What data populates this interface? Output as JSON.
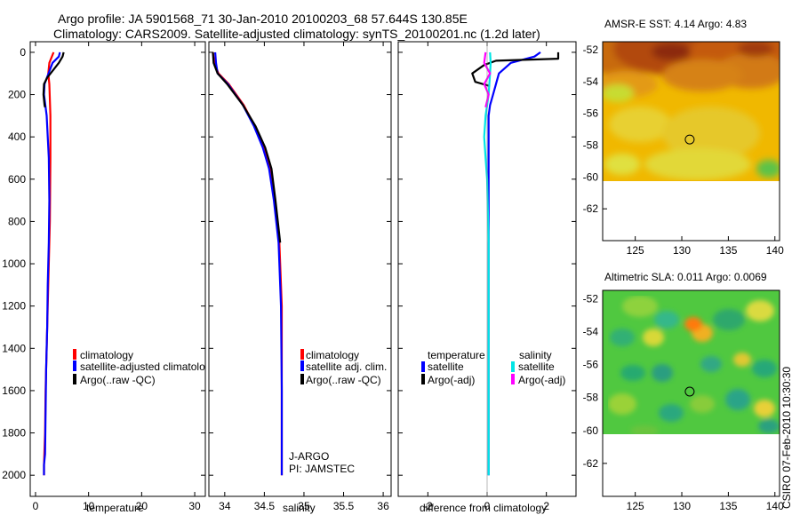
{
  "header": {
    "line1": "Argo profile: JA 5901568_71 30-Jan-2010 20100203_68 57.644S 130.85E",
    "line2": "Climatology: CARS2009. Satellite-adjusted climatology: synTS_20100201.nc (1.2d later)"
  },
  "timestamp": "CSIRO 07-Feb-2010 10:30:30",
  "colors": {
    "climatology": "#ff0000",
    "satellite": "#0000ff",
    "argo": "#000000",
    "sal_satellite": "#00e5e5",
    "sal_argo": "#ff00ff"
  },
  "chart_data": [
    {
      "type": "line",
      "id": "temperature",
      "xlabel": "temperature",
      "ylabel": "",
      "xlim": [
        -1,
        32
      ],
      "ylim": [
        2100,
        -50
      ],
      "xticks": [
        0,
        10,
        20,
        30
      ],
      "yticks": [
        0,
        200,
        400,
        600,
        800,
        1000,
        1200,
        1400,
        1600,
        1800,
        2000
      ],
      "legend": [
        "climatology",
        "satellite-adjusted climatolo",
        "Argo(..raw -QC)"
      ],
      "series": [
        {
          "name": "climatology",
          "color": "#ff0000",
          "x": [
            3.4,
            2.6,
            2.4,
            2.6,
            2.8,
            2.8,
            2.7,
            2.5,
            2.3,
            2.1,
            1.9,
            1.8,
            1.6,
            1.6
          ],
          "y": [
            0,
            50,
            100,
            150,
            300,
            500,
            800,
            1000,
            1200,
            1400,
            1600,
            1800,
            1950,
            2000
          ]
        },
        {
          "name": "satellite-adjusted climatology",
          "color": "#0000ff",
          "x": [
            4.6,
            4.4,
            3.2,
            1.7,
            1.6,
            2.1,
            2.5,
            2.6,
            2.5,
            2.3,
            2.2,
            2.0,
            1.9,
            1.8,
            1.6,
            1.6
          ],
          "y": [
            0,
            20,
            50,
            150,
            200,
            300,
            500,
            700,
            900,
            1100,
            1300,
            1500,
            1700,
            1900,
            1950,
            2000
          ]
        },
        {
          "name": "Argo (raw -QC)",
          "color": "#000000",
          "x": [
            5.3,
            5.1,
            4.4,
            2.2,
            1.6,
            1.5,
            1.7,
            1.8
          ],
          "y": [
            0,
            20,
            50,
            120,
            150,
            200,
            250,
            260
          ]
        }
      ]
    },
    {
      "type": "line",
      "id": "salinity",
      "xlabel": "salinity",
      "ylabel": "",
      "xlim": [
        33.8,
        36.1
      ],
      "ylim": [
        2100,
        -50
      ],
      "xticks": [
        34,
        34.5,
        35,
        35.5,
        36
      ],
      "yticks": [
        0,
        200,
        400,
        600,
        800,
        1000,
        1200,
        1400,
        1600,
        1800,
        2000
      ],
      "legend": [
        "climatology",
        "satellite adj. clim.",
        "Argo(..raw -QC)"
      ],
      "annotations": [
        "J-ARGO",
        "PI: JAMSTEC"
      ],
      "series": [
        {
          "name": "climatology",
          "color": "#ff0000",
          "x": [
            33.85,
            33.87,
            33.92,
            34.05,
            34.24,
            34.38,
            34.49,
            34.57,
            34.63,
            34.69,
            34.72,
            34.72,
            34.72
          ],
          "y": [
            0,
            50,
            100,
            150,
            250,
            350,
            450,
            550,
            700,
            900,
            1200,
            1600,
            2000
          ]
        },
        {
          "name": "satellite adj. clim.",
          "color": "#0000ff",
          "x": [
            33.88,
            33.89,
            33.91,
            34.04,
            34.23,
            34.37,
            34.48,
            34.56,
            34.62,
            34.68,
            34.71,
            34.72,
            34.72
          ],
          "y": [
            0,
            50,
            100,
            150,
            250,
            350,
            450,
            550,
            700,
            900,
            1200,
            1600,
            2000
          ]
        },
        {
          "name": "Argo (raw -QC)",
          "color": "#000000",
          "x": [
            33.85,
            33.86,
            33.91,
            34.03,
            34.23,
            34.39,
            34.51,
            34.59,
            34.64,
            34.7
          ],
          "y": [
            0,
            50,
            100,
            150,
            250,
            350,
            450,
            550,
            700,
            900
          ]
        }
      ]
    },
    {
      "type": "line",
      "id": "difference",
      "xlabel": "difference from climatology",
      "ylabel": "",
      "xlim": [
        -3,
        3
      ],
      "ylim": [
        2100,
        -50
      ],
      "xticks": [
        -2,
        0,
        2
      ],
      "yticks": [
        0,
        200,
        400,
        600,
        800,
        1000,
        1200,
        1400,
        1600,
        1800,
        2000
      ],
      "legend": {
        "temperature": [
          "satellite",
          "Argo(-adj)"
        ],
        "salinity": [
          "satellite",
          "Argo(-adj)"
        ]
      },
      "legend_headers": [
        "temperature",
        "salinity"
      ],
      "series": [
        {
          "name": "temperature satellite",
          "color": "#0000ff",
          "x": [
            1.8,
            1.6,
            0.8,
            0.4,
            0.3,
            0.2,
            0.1,
            0.05,
            0.05
          ],
          "y": [
            0,
            20,
            50,
            100,
            150,
            200,
            250,
            300,
            2000
          ]
        },
        {
          "name": "temperature Argo(-adj)",
          "color": "#000000",
          "x": [
            2.4,
            2.4,
            0.3,
            -0.1,
            -0.5,
            -0.4,
            0.1
          ],
          "y": [
            0,
            30,
            40,
            60,
            100,
            140,
            160
          ]
        },
        {
          "name": "salinity satellite",
          "color": "#00e5e5",
          "x": [
            0.1,
            0.12,
            0.1,
            0.05,
            -0.05,
            -0.1,
            -0.05,
            0.0,
            0.05,
            0.05
          ],
          "y": [
            0,
            50,
            100,
            200,
            300,
            400,
            500,
            600,
            900,
            2000
          ]
        },
        {
          "name": "salinity Argo(-adj)",
          "color": "#ff00ff",
          "x": [
            -0.05,
            -0.1,
            0.1,
            -0.1,
            0.05,
            -0.05
          ],
          "y": [
            0,
            50,
            100,
            150,
            200,
            260
          ]
        }
      ]
    },
    {
      "type": "heatmap",
      "id": "sst_map",
      "title": "AMSR-E SST: 4.14 Argo: 4.83",
      "xlim": [
        121.5,
        140.5
      ],
      "ylim": [
        -64,
        -51.5
      ],
      "xticks": [
        125,
        130,
        135,
        140
      ],
      "yticks": [
        -52,
        -54,
        -56,
        -58,
        -60,
        -62
      ],
      "marker": {
        "lon": 130.85,
        "lat": -57.644
      },
      "data_extent_lat_min": -60
    },
    {
      "type": "heatmap",
      "id": "sla_map",
      "title": "Altimetric SLA: 0.011 Argo: 0.0069",
      "xlim": [
        121.5,
        140.5
      ],
      "ylim": [
        -64,
        -51.5
      ],
      "xticks": [
        125,
        130,
        135,
        140
      ],
      "yticks": [
        -52,
        -54,
        -56,
        -58,
        -60,
        -62
      ],
      "marker": {
        "lon": 130.85,
        "lat": -57.644
      },
      "data_extent_lat_min": -60
    }
  ]
}
